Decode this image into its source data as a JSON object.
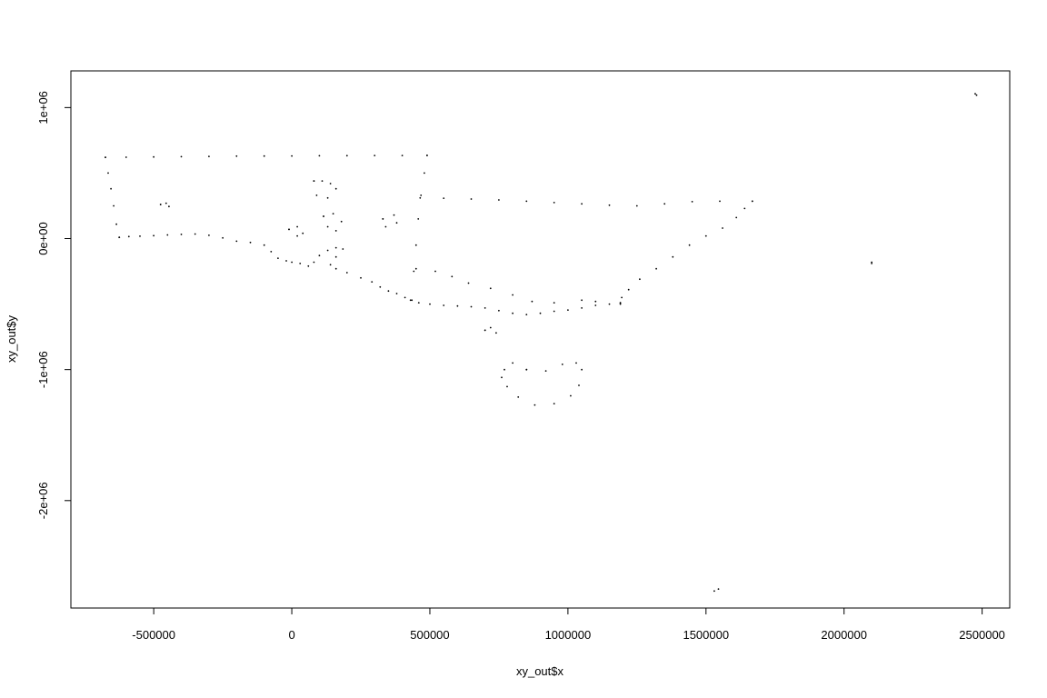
{
  "chart_data": {
    "type": "scatter",
    "title": "",
    "xlabel": "xy_out$x",
    "ylabel": "xy_out$y",
    "xlim": [
      -800000,
      2600000
    ],
    "ylim": [
      -2820000,
      1280000
    ],
    "x_ticks": [
      {
        "value": -500000,
        "label": "-500000"
      },
      {
        "value": 0,
        "label": "0"
      },
      {
        "value": 500000,
        "label": "500000"
      },
      {
        "value": 1000000,
        "label": "1000000"
      },
      {
        "value": 1500000,
        "label": "1500000"
      },
      {
        "value": 2000000,
        "label": "2000000"
      },
      {
        "value": 2500000,
        "label": "2500000"
      }
    ],
    "y_ticks": [
      {
        "value": 1000000,
        "label": "1e+06"
      },
      {
        "value": 0,
        "label": "0e+00"
      },
      {
        "value": -1000000,
        "label": "-1e+06"
      },
      {
        "value": -2000000,
        "label": "-2e+06"
      }
    ],
    "grid": false,
    "legend": "none",
    "color": "#000000",
    "series": [
      {
        "values": [
          [
            -675000,
            620000
          ],
          [
            -600000,
            621000
          ],
          [
            -500000,
            623000
          ],
          [
            -400000,
            625000
          ],
          [
            -300000,
            627000
          ],
          [
            -200000,
            629000
          ],
          [
            -100000,
            630000
          ],
          [
            0,
            631000
          ],
          [
            100000,
            632000
          ],
          [
            200000,
            633000
          ],
          [
            300000,
            634000
          ],
          [
            400000,
            634000
          ],
          [
            490000,
            635000
          ],
          [
            -675000,
            620000
          ],
          [
            -665000,
            500000
          ],
          [
            -655000,
            380000
          ],
          [
            -645000,
            250000
          ],
          [
            -635000,
            110000
          ],
          [
            -625000,
            10000
          ],
          [
            -625000,
            10000
          ],
          [
            -590000,
            15000
          ],
          [
            -550000,
            18000
          ],
          [
            -500000,
            22000
          ],
          [
            -450000,
            28000
          ],
          [
            -400000,
            32000
          ],
          [
            -350000,
            35000
          ],
          [
            -300000,
            25000
          ],
          [
            -250000,
            5000
          ],
          [
            -200000,
            -20000
          ],
          [
            -150000,
            -30000
          ],
          [
            -100000,
            -50000
          ],
          [
            -75000,
            -100000
          ],
          [
            -50000,
            -150000
          ],
          [
            -20000,
            -170000
          ],
          [
            0,
            -180000
          ],
          [
            30000,
            -190000
          ],
          [
            60000,
            -210000
          ],
          [
            80000,
            -180000
          ],
          [
            100000,
            -130000
          ],
          [
            130000,
            -90000
          ],
          [
            160000,
            -70000
          ],
          [
            185000,
            -80000
          ],
          [
            160000,
            -140000
          ],
          [
            140000,
            -200000
          ],
          [
            160000,
            -230000
          ],
          [
            200000,
            -260000
          ],
          [
            250000,
            -300000
          ],
          [
            290000,
            -330000
          ],
          [
            320000,
            -370000
          ],
          [
            350000,
            -400000
          ],
          [
            380000,
            -420000
          ],
          [
            410000,
            -450000
          ],
          [
            430000,
            -470000
          ],
          [
            460000,
            -490000
          ],
          [
            500000,
            -500000
          ],
          [
            550000,
            -510000
          ],
          [
            600000,
            -515000
          ],
          [
            650000,
            -520000
          ],
          [
            700000,
            -530000
          ],
          [
            750000,
            -550000
          ],
          [
            800000,
            -570000
          ],
          [
            850000,
            -580000
          ],
          [
            900000,
            -570000
          ],
          [
            950000,
            -555000
          ],
          [
            1000000,
            -545000
          ],
          [
            1050000,
            -530000
          ],
          [
            1100000,
            -510000
          ],
          [
            1150000,
            -500000
          ],
          [
            1190000,
            -490000
          ],
          [
            490000,
            635000
          ],
          [
            480000,
            500000
          ],
          [
            468000,
            330000
          ],
          [
            458000,
            150000
          ],
          [
            450000,
            -50000
          ],
          [
            442000,
            -250000
          ],
          [
            435000,
            -470000
          ],
          [
            465000,
            310000
          ],
          [
            550000,
            308000
          ],
          [
            650000,
            302000
          ],
          [
            750000,
            295000
          ],
          [
            850000,
            285000
          ],
          [
            950000,
            275000
          ],
          [
            1050000,
            265000
          ],
          [
            1150000,
            255000
          ],
          [
            1250000,
            250000
          ],
          [
            1350000,
            265000
          ],
          [
            1450000,
            282000
          ],
          [
            1550000,
            285000
          ],
          [
            1668000,
            285000
          ],
          [
            1668000,
            285000
          ],
          [
            1640000,
            230000
          ],
          [
            1610000,
            160000
          ],
          [
            1560000,
            80000
          ],
          [
            1500000,
            20000
          ],
          [
            1440000,
            -50000
          ],
          [
            1380000,
            -140000
          ],
          [
            1320000,
            -230000
          ],
          [
            1260000,
            -310000
          ],
          [
            1220000,
            -390000
          ],
          [
            1195000,
            -450000
          ],
          [
            1190000,
            -490000
          ],
          [
            450000,
            -230000
          ],
          [
            520000,
            -250000
          ],
          [
            580000,
            -290000
          ],
          [
            640000,
            -340000
          ],
          [
            720000,
            -380000
          ],
          [
            800000,
            -430000
          ],
          [
            870000,
            -480000
          ],
          [
            950000,
            -490000
          ],
          [
            1050000,
            -470000
          ],
          [
            1100000,
            -480000
          ],
          [
            1190000,
            -500000
          ],
          [
            850000,
            -1000000
          ],
          [
            800000,
            -950000
          ],
          [
            770000,
            -1000000
          ],
          [
            760000,
            -1060000
          ],
          [
            780000,
            -1130000
          ],
          [
            820000,
            -1210000
          ],
          [
            880000,
            -1270000
          ],
          [
            950000,
            -1260000
          ],
          [
            1010000,
            -1200000
          ],
          [
            1040000,
            -1120000
          ],
          [
            1050000,
            -1000000
          ],
          [
            1030000,
            -950000
          ],
          [
            980000,
            -960000
          ],
          [
            920000,
            -1010000
          ],
          [
            850000,
            -1000000
          ],
          [
            80000,
            440000
          ],
          [
            110000,
            440000
          ],
          [
            140000,
            420000
          ],
          [
            160000,
            380000
          ],
          [
            130000,
            310000
          ],
          [
            90000,
            330000
          ],
          [
            80000,
            440000
          ],
          [
            115000,
            170000
          ],
          [
            150000,
            190000
          ],
          [
            180000,
            130000
          ],
          [
            160000,
            60000
          ],
          [
            130000,
            90000
          ],
          [
            115000,
            170000
          ],
          [
            -10000,
            70000
          ],
          [
            20000,
            90000
          ],
          [
            40000,
            40000
          ],
          [
            20000,
            20000
          ],
          [
            -10000,
            70000
          ],
          [
            330000,
            150000
          ],
          [
            370000,
            180000
          ],
          [
            380000,
            120000
          ],
          [
            340000,
            90000
          ],
          [
            330000,
            150000
          ],
          [
            700000,
            -700000
          ],
          [
            720000,
            -680000
          ],
          [
            740000,
            -720000
          ],
          [
            700000,
            -700000
          ],
          [
            -475000,
            260000
          ],
          [
            -455000,
            270000
          ],
          [
            -445000,
            245000
          ],
          [
            -475000,
            260000
          ],
          [
            1545000,
            -2675000
          ],
          [
            1530000,
            -2690000
          ],
          [
            2475000,
            1105000
          ],
          [
            2480000,
            1095000
          ],
          [
            2100000,
            -180000
          ],
          [
            2100000,
            -190000
          ]
        ]
      }
    ]
  }
}
